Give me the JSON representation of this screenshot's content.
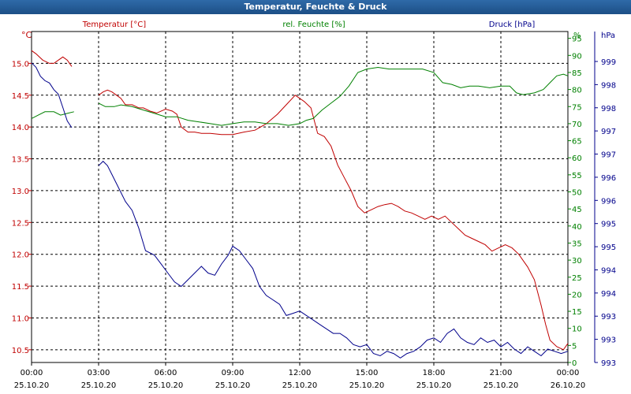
{
  "window": {
    "title": "Temperatur, Feuchte & Druck"
  },
  "chart_data": {
    "type": "line",
    "title": "Temperatur, Feuchte & Druck",
    "colors": {
      "temperature": "#c00000",
      "humidity": "#008000",
      "pressure": "#00008b",
      "grid": "#000000"
    },
    "grid": true,
    "x_ticks": [
      {
        "time": "00:00",
        "date": "25.10.20"
      },
      {
        "time": "03:00",
        "date": "25.10.20"
      },
      {
        "time": "06:00",
        "date": "25.10.20"
      },
      {
        "time": "09:00",
        "date": "25.10.20"
      },
      {
        "time": "12:00",
        "date": "25.10.20"
      },
      {
        "time": "15:00",
        "date": "25.10.20"
      },
      {
        "time": "18:00",
        "date": "25.10.20"
      },
      {
        "time": "21:00",
        "date": "25.10.20"
      },
      {
        "time": "00:00",
        "date": "26.10.20"
      }
    ],
    "axes": {
      "temperature": {
        "label": "Temperatur [°C]",
        "unit": "°C",
        "ylim": [
          10.3,
          15.5
        ],
        "ticks": [
          "15.0",
          "14.5",
          "14.0",
          "13.5",
          "13.0",
          "12.5",
          "12.0",
          "11.5",
          "11.0",
          "10.5"
        ]
      },
      "humidity": {
        "label": "rel. Feuchte [%]",
        "unit": "%",
        "ylim": [
          0,
          97
        ],
        "ticks": [
          "95",
          "90",
          "85",
          "80",
          "75",
          "70",
          "65",
          "60",
          "55",
          "50",
          "45",
          "40",
          "35",
          "30",
          "25",
          "20",
          "15",
          "10",
          "5",
          "0"
        ]
      },
      "pressure": {
        "label": "Druck [hPa]",
        "unit": "hPa",
        "ylim": [
          992.5,
          999.9
        ],
        "ticks": [
          "999",
          "998",
          "998",
          "997",
          "997",
          "996",
          "996",
          "995",
          "995",
          "994",
          "994",
          "993",
          "993",
          "993"
        ]
      }
    },
    "series": [
      {
        "name": "Temperatur [°C]",
        "axis": "temperature",
        "segments": [
          [
            [
              0,
              15.2
            ],
            [
              0.2,
              15.15
            ],
            [
              0.5,
              15.05
            ],
            [
              0.8,
              15.0
            ],
            [
              1.0,
              15.0
            ],
            [
              1.2,
              15.05
            ],
            [
              1.4,
              15.1
            ],
            [
              1.6,
              15.05
            ],
            [
              1.8,
              14.95
            ]
          ],
          [
            [
              3.0,
              14.5
            ],
            [
              3.2,
              14.55
            ],
            [
              3.4,
              14.58
            ],
            [
              3.6,
              14.55
            ],
            [
              3.8,
              14.5
            ],
            [
              4.0,
              14.45
            ],
            [
              4.2,
              14.35
            ],
            [
              4.5,
              14.35
            ],
            [
              4.8,
              14.3
            ],
            [
              5.0,
              14.3
            ],
            [
              5.3,
              14.25
            ],
            [
              5.6,
              14.22
            ],
            [
              6.0,
              14.28
            ],
            [
              6.3,
              14.25
            ],
            [
              6.5,
              14.2
            ],
            [
              6.7,
              14.0
            ],
            [
              7.0,
              13.92
            ],
            [
              7.3,
              13.92
            ],
            [
              7.6,
              13.9
            ],
            [
              8.0,
              13.9
            ],
            [
              8.5,
              13.88
            ],
            [
              9.0,
              13.88
            ],
            [
              9.5,
              13.92
            ],
            [
              10.0,
              13.95
            ],
            [
              10.5,
              14.05
            ],
            [
              11.0,
              14.2
            ],
            [
              11.4,
              14.35
            ],
            [
              11.8,
              14.5
            ],
            [
              12.2,
              14.4
            ],
            [
              12.5,
              14.3
            ],
            [
              12.8,
              13.9
            ],
            [
              13.1,
              13.85
            ],
            [
              13.4,
              13.7
            ],
            [
              13.7,
              13.4
            ],
            [
              14.0,
              13.2
            ],
            [
              14.3,
              13.0
            ],
            [
              14.6,
              12.75
            ],
            [
              14.9,
              12.65
            ],
            [
              15.2,
              12.7
            ],
            [
              15.5,
              12.75
            ],
            [
              15.8,
              12.78
            ],
            [
              16.1,
              12.8
            ],
            [
              16.4,
              12.75
            ],
            [
              16.7,
              12.68
            ],
            [
              17.0,
              12.65
            ],
            [
              17.3,
              12.6
            ],
            [
              17.6,
              12.55
            ],
            [
              17.9,
              12.6
            ],
            [
              18.2,
              12.55
            ],
            [
              18.5,
              12.6
            ],
            [
              18.8,
              12.5
            ],
            [
              19.1,
              12.4
            ],
            [
              19.4,
              12.3
            ],
            [
              19.7,
              12.25
            ],
            [
              20.0,
              12.2
            ],
            [
              20.3,
              12.15
            ],
            [
              20.6,
              12.05
            ],
            [
              20.9,
              12.1
            ],
            [
              21.2,
              12.15
            ],
            [
              21.5,
              12.1
            ],
            [
              21.8,
              12.0
            ],
            [
              22.2,
              11.8
            ],
            [
              22.5,
              11.6
            ],
            [
              22.8,
              11.2
            ],
            [
              23.0,
              10.9
            ],
            [
              23.2,
              10.65
            ],
            [
              23.5,
              10.55
            ],
            [
              23.8,
              10.5
            ],
            [
              24.0,
              10.6
            ]
          ]
        ]
      },
      {
        "name": "rel. Feuchte [%]",
        "axis": "humidity",
        "segments": [
          [
            [
              0,
              71.5
            ],
            [
              0.3,
              72.5
            ],
            [
              0.6,
              73.5
            ],
            [
              1.0,
              73.5
            ],
            [
              1.3,
              72.5
            ],
            [
              1.6,
              73
            ],
            [
              1.9,
              73.5
            ]
          ],
          [
            [
              3.0,
              76
            ],
            [
              3.3,
              75
            ],
            [
              3.7,
              75
            ],
            [
              4.0,
              75.5
            ],
            [
              4.5,
              75
            ],
            [
              5.0,
              74
            ],
            [
              5.5,
              73
            ],
            [
              6.0,
              72
            ],
            [
              6.5,
              72
            ],
            [
              7.0,
              71
            ],
            [
              7.5,
              70.5
            ],
            [
              8.0,
              70
            ],
            [
              8.5,
              69.5
            ],
            [
              9.0,
              70
            ],
            [
              9.5,
              70.5
            ],
            [
              10.0,
              70.5
            ],
            [
              10.5,
              70
            ],
            [
              11.0,
              70
            ],
            [
              11.5,
              69.5
            ],
            [
              12.0,
              70
            ],
            [
              12.3,
              71
            ],
            [
              12.6,
              71.5
            ],
            [
              13.0,
              74
            ],
            [
              13.4,
              76
            ],
            [
              13.8,
              78
            ],
            [
              14.2,
              81
            ],
            [
              14.6,
              85
            ],
            [
              15.0,
              86
            ],
            [
              15.5,
              86.5
            ],
            [
              16.0,
              86
            ],
            [
              16.5,
              86
            ],
            [
              17.0,
              86
            ],
            [
              17.5,
              86
            ],
            [
              18.0,
              85
            ],
            [
              18.4,
              82
            ],
            [
              18.8,
              81.5
            ],
            [
              19.2,
              80.5
            ],
            [
              19.6,
              81
            ],
            [
              20.0,
              81
            ],
            [
              20.5,
              80.5
            ],
            [
              21.0,
              81
            ],
            [
              21.4,
              81
            ],
            [
              21.7,
              79
            ],
            [
              22.0,
              78.5
            ],
            [
              22.5,
              79
            ],
            [
              22.9,
              80
            ],
            [
              23.2,
              82
            ],
            [
              23.5,
              84
            ],
            [
              23.8,
              84.5
            ],
            [
              24.0,
              84
            ]
          ]
        ]
      },
      {
        "name": "Druck [hPa]",
        "axis": "pressure",
        "segments": [
          [
            [
              0,
              999.2
            ],
            [
              0.2,
              999.1
            ],
            [
              0.4,
              998.9
            ],
            [
              0.6,
              998.8
            ],
            [
              0.8,
              998.75
            ],
            [
              1.0,
              998.6
            ],
            [
              1.2,
              998.5
            ],
            [
              1.4,
              998.2
            ],
            [
              1.6,
              997.9
            ],
            [
              1.8,
              997.75
            ]
          ],
          [
            [
              3.0,
              996.9
            ],
            [
              3.2,
              997.0
            ],
            [
              3.4,
              996.9
            ],
            [
              3.6,
              996.7
            ],
            [
              3.9,
              996.4
            ],
            [
              4.2,
              996.1
            ],
            [
              4.5,
              995.9
            ],
            [
              4.8,
              995.5
            ],
            [
              5.1,
              995.0
            ],
            [
              5.5,
              994.9
            ],
            [
              5.8,
              994.7
            ],
            [
              6.1,
              994.5
            ],
            [
              6.4,
              994.3
            ],
            [
              6.7,
              994.2
            ],
            [
              7.0,
              994.35
            ],
            [
              7.3,
              994.5
            ],
            [
              7.6,
              994.65
            ],
            [
              7.9,
              994.5
            ],
            [
              8.2,
              994.45
            ],
            [
              8.5,
              994.7
            ],
            [
              8.8,
              994.9
            ],
            [
              9.0,
              995.1
            ],
            [
              9.3,
              995.0
            ],
            [
              9.6,
              994.8
            ],
            [
              9.9,
              994.6
            ],
            [
              10.2,
              994.2
            ],
            [
              10.5,
              994.0
            ],
            [
              10.8,
              993.9
            ],
            [
              11.1,
              993.8
            ],
            [
              11.4,
              993.55
            ],
            [
              11.7,
              993.6
            ],
            [
              12.0,
              993.65
            ],
            [
              12.3,
              993.55
            ],
            [
              12.6,
              993.45
            ],
            [
              12.9,
              993.35
            ],
            [
              13.2,
              993.25
            ],
            [
              13.5,
              993.15
            ],
            [
              13.8,
              993.15
            ],
            [
              14.1,
              993.05
            ],
            [
              14.4,
              992.9
            ],
            [
              14.7,
              992.85
            ],
            [
              15.0,
              992.9
            ],
            [
              15.3,
              992.7
            ],
            [
              15.6,
              992.65
            ],
            [
              15.9,
              992.75
            ],
            [
              16.2,
              992.7
            ],
            [
              16.5,
              992.6
            ],
            [
              16.8,
              992.7
            ],
            [
              17.1,
              992.75
            ],
            [
              17.4,
              992.85
            ],
            [
              17.7,
              993.0
            ],
            [
              18.0,
              993.05
            ],
            [
              18.3,
              992.95
            ],
            [
              18.6,
              993.15
            ],
            [
              18.9,
              993.25
            ],
            [
              19.2,
              993.05
            ],
            [
              19.5,
              992.95
            ],
            [
              19.8,
              992.9
            ],
            [
              20.1,
              993.05
            ],
            [
              20.4,
              992.95
            ],
            [
              20.7,
              993.0
            ],
            [
              21.0,
              992.85
            ],
            [
              21.3,
              992.95
            ],
            [
              21.6,
              992.8
            ],
            [
              21.9,
              992.7
            ],
            [
              22.2,
              992.85
            ],
            [
              22.5,
              992.75
            ],
            [
              22.8,
              992.65
            ],
            [
              23.1,
              992.8
            ],
            [
              23.4,
              992.75
            ],
            [
              23.7,
              992.7
            ],
            [
              24.0,
              992.75
            ]
          ]
        ]
      }
    ]
  }
}
